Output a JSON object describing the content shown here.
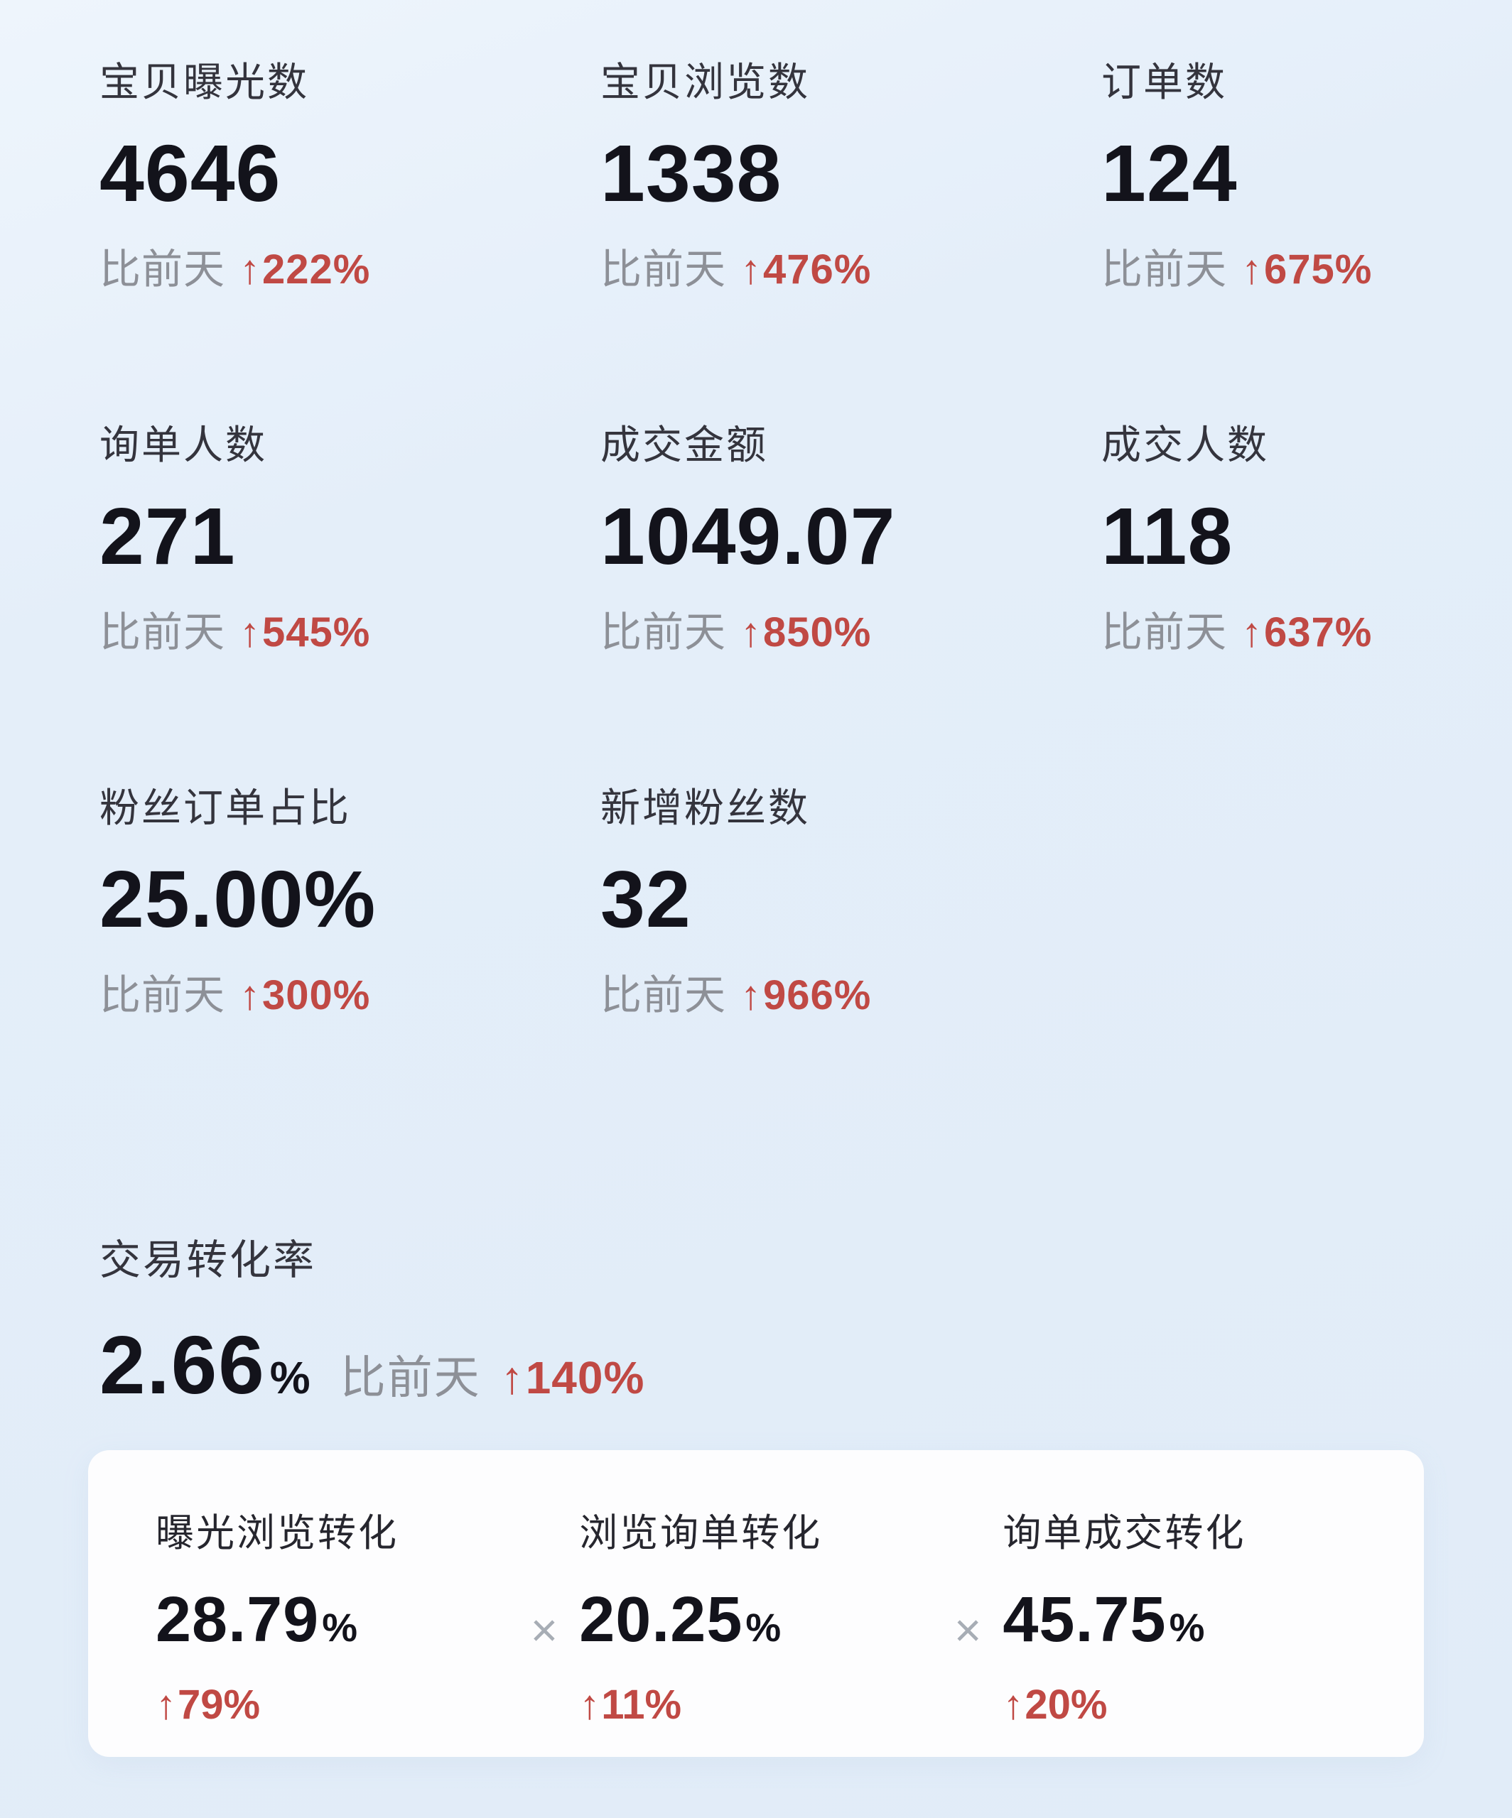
{
  "theme": {
    "background": "#e4eef9",
    "card_background": "#fdfdfe",
    "text_primary": "#13131b",
    "text_label": "#34343d",
    "text_muted": "#8d9097",
    "accent_up_red": "#c04944",
    "separator_gray": "#a7adb5"
  },
  "arrow": "↑",
  "metrics": [
    {
      "label": "宝贝曝光数",
      "value": "4646",
      "compare_prefix": "比前天",
      "delta": "222%"
    },
    {
      "label": "宝贝浏览数",
      "value": "1338",
      "compare_prefix": "比前天",
      "delta": "476%"
    },
    {
      "label": "订单数",
      "value": "124",
      "compare_prefix": "比前天",
      "delta": "675%"
    },
    {
      "label": "询单人数",
      "value": "271",
      "compare_prefix": "比前天",
      "delta": "545%"
    },
    {
      "label": "成交金额",
      "value": "1049.07",
      "compare_prefix": "比前天",
      "delta": "850%"
    },
    {
      "label": "成交人数",
      "value": "118",
      "compare_prefix": "比前天",
      "delta": "637%"
    },
    {
      "label": "粉丝订单占比",
      "value": "25.00%",
      "compare_prefix": "比前天",
      "delta": "300%"
    },
    {
      "label": "新增粉丝数",
      "value": "32",
      "compare_prefix": "比前天",
      "delta": "966%"
    }
  ],
  "conversion": {
    "label": "交易转化率",
    "value": "2.66",
    "unit": "%",
    "compare_prefix": "比前天",
    "delta": "140%"
  },
  "funnel": {
    "separator": "×",
    "items": [
      {
        "label": "曝光浏览转化",
        "value": "28.79",
        "unit": "%",
        "delta": "79%"
      },
      {
        "label": "浏览询单转化",
        "value": "20.25",
        "unit": "%",
        "delta": "11%"
      },
      {
        "label": "询单成交转化",
        "value": "45.75",
        "unit": "%",
        "delta": "20%"
      }
    ]
  }
}
